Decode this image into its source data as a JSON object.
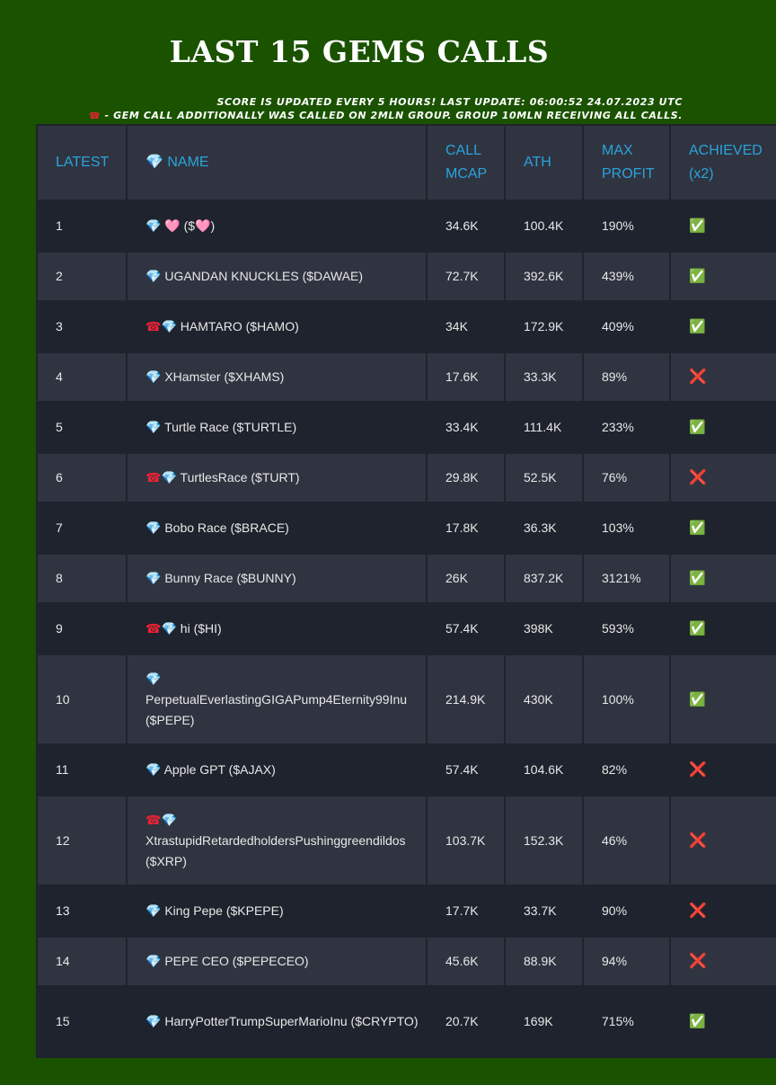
{
  "title": "LAST 15 GEMS CALLS",
  "notes": {
    "line1": "SCORE IS UPDATED EVERY 5 HOURS! LAST UPDATE: 06:00:52 24.07.2023 UTC",
    "line2_icon": "☎",
    "line2": " - GEM CALL ADDITIONALLY WAS CALLED ON 2MLN GROUP. GROUP 10MLN RECEIVING ALL CALLS."
  },
  "headers": {
    "latest": "LATEST",
    "name": "NAME",
    "name_icon": "💎",
    "call_mcap": "CALL MCAP",
    "ath": "ATH",
    "max_profit": "MAX PROFIT",
    "achieved": "ACHIEVED (x2)"
  },
  "icons": {
    "gem": "💎",
    "phone": "☎",
    "achieved_yes": "✅",
    "achieved_no": "❌"
  },
  "rows": [
    {
      "latest": "1",
      "phone": false,
      "name": "🩷 ($🩷)",
      "call_mcap": "34.6K",
      "ath": "100.4K",
      "max_profit": "190%",
      "achieved": true
    },
    {
      "latest": "2",
      "phone": false,
      "name": "UGANDAN KNUCKLES ($DAWAE)",
      "call_mcap": "72.7K",
      "ath": "392.6K",
      "max_profit": "439%",
      "achieved": true
    },
    {
      "latest": "3",
      "phone": true,
      "name": "HAMTARO ($HAMO)",
      "call_mcap": "34K",
      "ath": "172.9K",
      "max_profit": "409%",
      "achieved": true
    },
    {
      "latest": "4",
      "phone": false,
      "name": "XHamster ($XHAMS)",
      "call_mcap": "17.6K",
      "ath": "33.3K",
      "max_profit": "89%",
      "achieved": false
    },
    {
      "latest": "5",
      "phone": false,
      "name": "Turtle Race ($TURTLE)",
      "call_mcap": "33.4K",
      "ath": "111.4K",
      "max_profit": "233%",
      "achieved": true
    },
    {
      "latest": "6",
      "phone": true,
      "name": "TurtlesRace ($TURT)",
      "call_mcap": "29.8K",
      "ath": "52.5K",
      "max_profit": "76%",
      "achieved": false
    },
    {
      "latest": "7",
      "phone": false,
      "name": "Bobo Race ($BRACE)",
      "call_mcap": "17.8K",
      "ath": "36.3K",
      "max_profit": "103%",
      "achieved": true
    },
    {
      "latest": "8",
      "phone": false,
      "name": "Bunny Race ($BUNNY)",
      "call_mcap": "26K",
      "ath": "837.2K",
      "max_profit": "3121%",
      "achieved": true
    },
    {
      "latest": "9",
      "phone": true,
      "name": "hi ($HI)",
      "call_mcap": "57.4K",
      "ath": "398K",
      "max_profit": "593%",
      "achieved": true
    },
    {
      "latest": "10",
      "phone": false,
      "name": "PerpetualEverlastingGIGAPump4Eternity99Inu ($PEPE)",
      "call_mcap": "214.9K",
      "ath": "430K",
      "max_profit": "100%",
      "achieved": true
    },
    {
      "latest": "11",
      "phone": false,
      "name": "Apple GPT ($AJAX)",
      "call_mcap": "57.4K",
      "ath": "104.6K",
      "max_profit": "82%",
      "achieved": false
    },
    {
      "latest": "12",
      "phone": true,
      "name": "XtrastupidRetardedholdersPushinggreendildos ($XRP)",
      "call_mcap": "103.7K",
      "ath": "152.3K",
      "max_profit": "46%",
      "achieved": false
    },
    {
      "latest": "13",
      "phone": false,
      "name": "King Pepe ($KPEPE)",
      "call_mcap": "17.7K",
      "ath": "33.7K",
      "max_profit": "90%",
      "achieved": false
    },
    {
      "latest": "14",
      "phone": false,
      "name": "PEPE CEO ($PEPECEO)",
      "call_mcap": "45.6K",
      "ath": "88.9K",
      "max_profit": "94%",
      "achieved": false
    },
    {
      "latest": "15",
      "phone": false,
      "name": "HarryPotterTrumpSuperMarioInu ($CRYPTO)",
      "call_mcap": "20.7K",
      "ath": "169K",
      "max_profit": "715%",
      "achieved": true
    }
  ]
}
